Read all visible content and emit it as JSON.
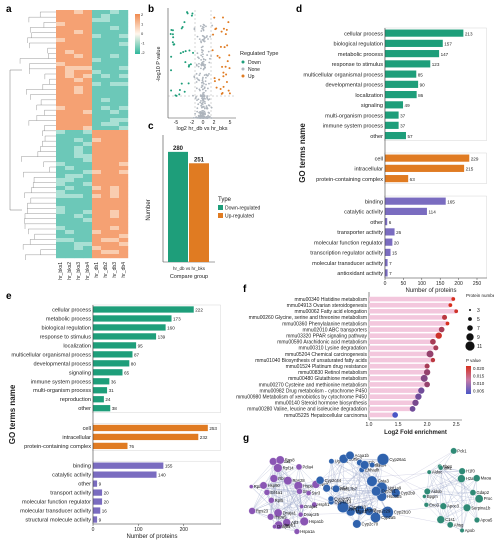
{
  "panel_letters": [
    "a",
    "b",
    "c",
    "d",
    "e",
    "f",
    "g"
  ],
  "colors": {
    "green": "#1e9e7a",
    "orange": "#e07b22",
    "purple": "#7a6cc0",
    "heat_hi": "#f5a173",
    "heat_lo": "#6cc8b8"
  },
  "heatmap": {
    "columns": [
      "hr_bks1",
      "hr_bks2",
      "hr_bks3",
      "hr_bks4",
      "hr_db1",
      "hr_db2",
      "hr_db3",
      "hr_db4"
    ],
    "scale_labels": [
      "2",
      "1",
      "0",
      "-1",
      "-2"
    ]
  },
  "volcano": {
    "xlabel": "log2 hr_db vs hr_bks",
    "ylabel": "-log10 P value",
    "xticks": [
      "-5",
      "-2",
      "0",
      "2",
      "5"
    ],
    "legend_title": "Regulated Type",
    "legend_items": [
      "Down",
      "None",
      "Up"
    ]
  },
  "chart_data": [
    {
      "type": "bar",
      "panel": "c",
      "categories": [
        "hr_db vs hr_bks"
      ],
      "series": [
        {
          "name": "Down-regulated",
          "values": [
            280
          ]
        },
        {
          "name": "Up-regulated",
          "values": [
            251
          ]
        }
      ],
      "xlabel": "Compare group",
      "ylabel": "Number",
      "legend_title": "Type"
    },
    {
      "type": "bar",
      "panel": "d",
      "orientation": "horizontal",
      "ylabel": "GO terms name",
      "xlabel": "Number of proteins",
      "xticks": [
        0,
        50,
        100,
        150,
        200,
        250
      ],
      "groups": [
        {
          "color": "green",
          "terms": [
            "cellular process",
            "biological regulation",
            "metabolic process",
            "response to stimulus",
            "multicellular organismal process",
            "developmental process",
            "localization",
            "signaling",
            "multi-organism process",
            "immune system process",
            "other"
          ],
          "values": [
            213,
            157,
            147,
            123,
            85,
            90,
            86,
            49,
            37,
            37,
            57
          ]
        },
        {
          "color": "orange",
          "terms": [
            "cell",
            "intracellular",
            "protein-containing complex"
          ],
          "values": [
            229,
            215,
            63
          ]
        },
        {
          "color": "purple",
          "terms": [
            "binding",
            "catalytic activity",
            "other",
            "transporter activity",
            "molecular function regulator",
            "transcription regulator activity",
            "molecular transducer activity",
            "antioxidant activity"
          ],
          "values": [
            165,
            114,
            6,
            26,
            20,
            15,
            7,
            7
          ]
        }
      ]
    },
    {
      "type": "bar",
      "panel": "e",
      "orientation": "horizontal",
      "ylabel": "GO terms name",
      "xlabel": "Number of proteins",
      "xticks": [
        0,
        100,
        200
      ],
      "groups": [
        {
          "color": "green",
          "terms": [
            "cellular process",
            "metabolic process",
            "biological regulation",
            "response to stimulus",
            "localization",
            "multicellular organismal process",
            "developmental process",
            "signaling",
            "immune system process",
            "multi-organism process",
            "reproduction",
            "other"
          ],
          "values": [
            222,
            173,
            160,
            139,
            95,
            87,
            80,
            65,
            36,
            31,
            24,
            38
          ]
        },
        {
          "color": "orange",
          "terms": [
            "cell",
            "intracellular",
            "protein-containing complex"
          ],
          "values": [
            253,
            232,
            76
          ]
        },
        {
          "color": "purple",
          "terms": [
            "binding",
            "catalytic activity",
            "other",
            "transport activity",
            "molecular function regulator",
            "molecular transducer activity",
            "structural molecule activity"
          ],
          "values": [
            155,
            140,
            9,
            20,
            20,
            16,
            9
          ]
        }
      ]
    },
    {
      "type": "scatter",
      "panel": "f",
      "xlabel": "Log2 Fold enrichment",
      "xticks": [
        1.0,
        1.5,
        2.0,
        2.5
      ],
      "size_legend_title": "Protein number",
      "size_legend": [
        "3",
        "5",
        "7",
        "9",
        "11"
      ],
      "color_legend_title": "P value",
      "color_legend": [
        "0.020",
        "0.015",
        "0.010",
        "0.005"
      ],
      "terms": [
        "mmu00340 Histidine metabolism",
        "mmu04913 Ovarian steroidogenesis",
        "mmu00062 Fatty acid elongation",
        "mmu00260 Glycine, serine and threonine metabolism",
        "mmu00360 Phenylalanine metabolism",
        "mmu02010 ABC transporters",
        "mmu03320 PPAR signaling pathway",
        "mmu00590 Arachidonic acid metabolism",
        "mmu00310 Lysine degradation",
        "mmu05204 Chemical carcinogenesis",
        "mmu01040 Biosynthesis of unsaturated fatty acids",
        "mmu01524 Platinum drug resistance",
        "mmu00830 Retinol metabolism",
        "mmu00480 Glutathione metabolism",
        "mmu00270 Cysteine and methionine metabolism",
        "mmu00982 Drug metabolism - cytochrome P450",
        "mmu00980 Metabolism of xenobiotics by cytochrome P450",
        "mmu00140 Steroid hormone biosynthesis",
        "mmu00280 Valine, leucine and isoleucine degradation",
        "mmu05225 Hepatocellular carcinoma"
      ],
      "x": [
        2.45,
        2.4,
        2.5,
        2.3,
        2.35,
        2.25,
        2.2,
        2.1,
        2.15,
        2.05,
        2.1,
        2.0,
        2.0,
        1.95,
        2.0,
        1.9,
        1.85,
        1.8,
        1.75,
        1.45
      ],
      "sizes": [
        4,
        4,
        4,
        6,
        4,
        7,
        8,
        7,
        6,
        9,
        5,
        6,
        8,
        9,
        7,
        8,
        8,
        8,
        7,
        7
      ],
      "pvalues": [
        0.005,
        0.005,
        0.006,
        0.008,
        0.005,
        0.01,
        0.006,
        0.01,
        0.01,
        0.012,
        0.008,
        0.01,
        0.012,
        0.014,
        0.012,
        0.016,
        0.016,
        0.015,
        0.016,
        0.02
      ]
    }
  ],
  "network": {
    "left_genes": [
      "Hsph1",
      "Dnaja4",
      "Hspa1b",
      "Dnajc25",
      "Hspa1a",
      "Atf3",
      "Hspb1",
      "Dnajb1",
      "Dnaja1",
      "Hspa5",
      "Rps23",
      "Rpl5",
      "Eif4a1",
      "Rpl28",
      "Hsp90",
      "Rbm3",
      "Eef1a1",
      "Rpl14",
      "Rps8",
      "Rps28",
      "Pdia4",
      "Hspa8",
      "Nsf1",
      "Ssr1",
      "Ssr3"
    ],
    "center_genes": [
      "Cyp2b9",
      "Hsd3b5",
      "Cyp2b10",
      "Cyp2a5",
      "Cyp2c29",
      "Mgst3",
      "Cyp2c70",
      "Mgst1",
      "Gstm1",
      "Cyp4a10",
      "Cyp4a14",
      "Cyp2c50",
      "Cyp2c54",
      "Hsd17b7",
      "Cyp2c44",
      "Ugt2b1",
      "Sdr9c7",
      "Acaa1b",
      "Cpt1b",
      "Ehhadh",
      "Acot1",
      "Gsta4",
      "Cyp26a1",
      "Gsta3",
      "Ugt1a9",
      "Cyp2e1"
    ],
    "right_genes": [
      "Proc",
      "Serpina1b",
      "Apoa5",
      "Apob",
      "Ahsg",
      "C1s1",
      "Apoc3",
      "Eno3",
      "Bpgm",
      "Aldob",
      "Aldoc",
      "Fbp1",
      "Idh1",
      "Pck1",
      "H1f0",
      "H2ax",
      "Maoa",
      "Gdap2"
    ]
  }
}
